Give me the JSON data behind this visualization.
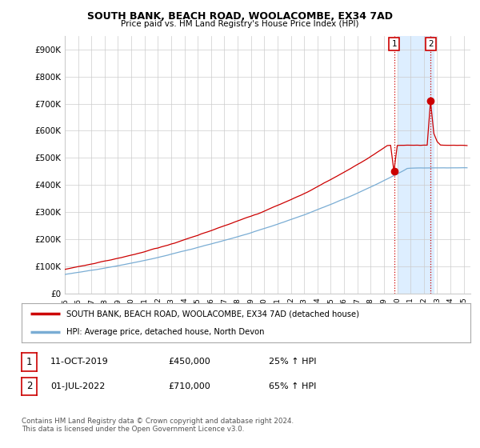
{
  "title": "SOUTH BANK, BEACH ROAD, WOOLACOMBE, EX34 7AD",
  "subtitle": "Price paid vs. HM Land Registry's House Price Index (HPI)",
  "ylim": [
    0,
    950000
  ],
  "yticks": [
    0,
    100000,
    200000,
    300000,
    400000,
    500000,
    600000,
    700000,
    800000,
    900000
  ],
  "ytick_labels": [
    "£0",
    "£100K",
    "£200K",
    "£300K",
    "£400K",
    "£500K",
    "£600K",
    "£700K",
    "£800K",
    "£900K"
  ],
  "hpi_color": "#7aadd4",
  "price_color": "#cc0000",
  "sale1_year": 2019.78,
  "sale1_price": 450000,
  "sale2_year": 2022.5,
  "sale2_price": 710000,
  "highlight_start": 2020.0,
  "highlight_end": 2022.75,
  "highlight_color": "#ddeeff",
  "legend_label1": "SOUTH BANK, BEACH ROAD, WOOLACOMBE, EX34 7AD (detached house)",
  "legend_label2": "HPI: Average price, detached house, North Devon",
  "table_row1": [
    "1",
    "11-OCT-2019",
    "£450,000",
    "25% ↑ HPI"
  ],
  "table_row2": [
    "2",
    "01-JUL-2022",
    "£710,000",
    "65% ↑ HPI"
  ],
  "footer": "Contains HM Land Registry data © Crown copyright and database right 2024.\nThis data is licensed under the Open Government Licence v3.0.",
  "background_color": "#ffffff",
  "xlim_start": 1995,
  "xlim_end": 2025.5
}
